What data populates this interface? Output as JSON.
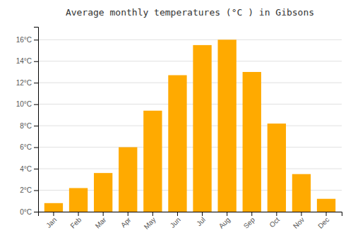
{
  "chart_data": {
    "type": "bar",
    "title": "Average monthly temperatures (°C ) in Gibsons",
    "categories": [
      "Jan",
      "Feb",
      "Mar",
      "Apr",
      "May",
      "Jun",
      "Jul",
      "Aug",
      "Sep",
      "Oct",
      "Nov",
      "Dec"
    ],
    "values": [
      0.8,
      2.2,
      3.6,
      6.0,
      9.4,
      12.7,
      15.5,
      16.0,
      13.0,
      8.2,
      3.5,
      1.2
    ],
    "color": "#FFAA00",
    "ylim": [
      0,
      17.2
    ],
    "yticks": [
      {
        "value": 0,
        "label": "0°C"
      },
      {
        "value": 2,
        "label": "2°C"
      },
      {
        "value": 4,
        "label": "4°C"
      },
      {
        "value": 6,
        "label": "6°C"
      },
      {
        "value": 8,
        "label": "8°C"
      },
      {
        "value": 10,
        "label": "10°C"
      },
      {
        "value": 12,
        "label": "12°C"
      },
      {
        "value": 14,
        "label": "14°C"
      },
      {
        "value": 16,
        "label": "16°C"
      }
    ],
    "grid": true
  }
}
